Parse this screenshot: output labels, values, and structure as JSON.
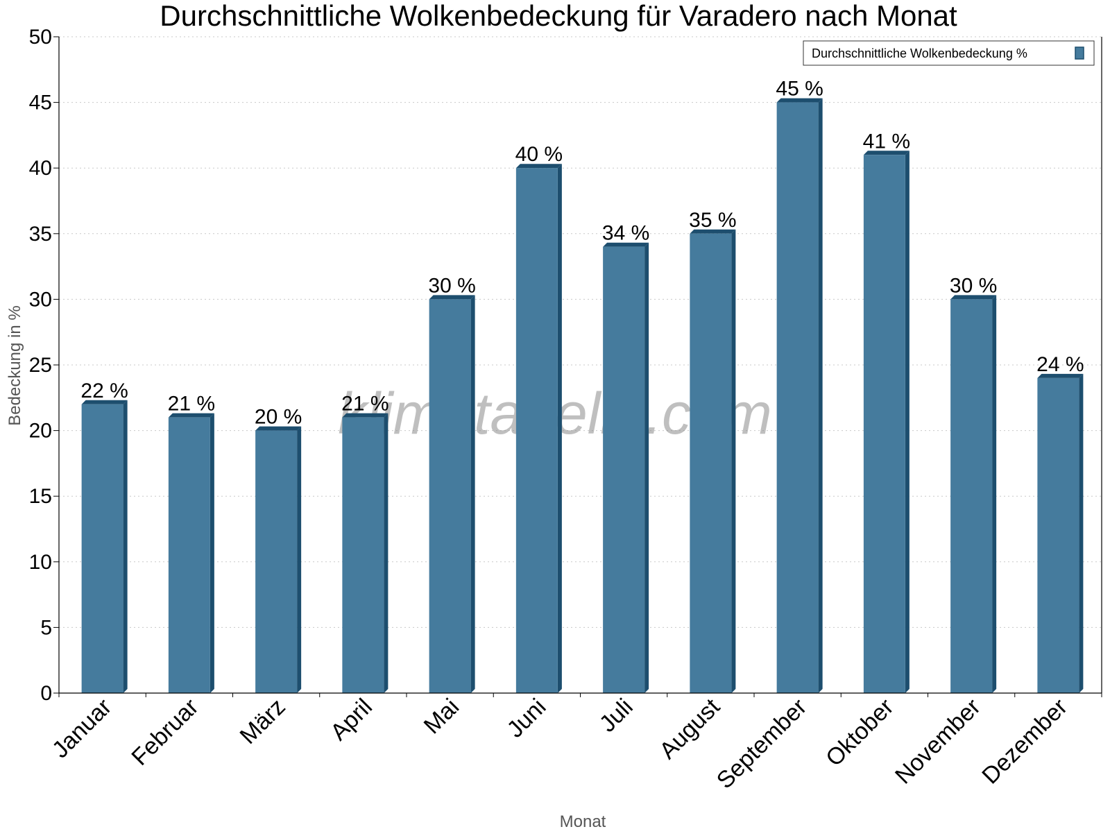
{
  "watermark": "klimatabelle.com",
  "chart_data": {
    "type": "bar",
    "title": "Durchschnittliche Wolkenbedeckung für Varadero nach Monat",
    "xlabel": "Monat",
    "ylabel": "Bedeckung in %",
    "ylim": [
      0,
      50
    ],
    "yticks": [
      0,
      5,
      10,
      15,
      20,
      25,
      30,
      35,
      40,
      45,
      50
    ],
    "categories": [
      "Januar",
      "Februar",
      "März",
      "April",
      "Mai",
      "Juni",
      "Juli",
      "August",
      "September",
      "Oktober",
      "November",
      "Dezember"
    ],
    "series": [
      {
        "name": "Durchschnittliche Wolkenbedeckung %",
        "values": [
          22,
          21,
          20,
          21,
          30,
          40,
          34,
          35,
          45,
          41,
          30,
          24
        ],
        "labels": [
          "22 %",
          "21 %",
          "20 %",
          "21 %",
          "30 %",
          "40 %",
          "34 %",
          "35 %",
          "45 %",
          "41 %",
          "30 %",
          "24 %"
        ],
        "color": "#457b9d",
        "edge_color": "#1d4e6e"
      }
    ],
    "grid": true,
    "legend_position": "top-right"
  }
}
